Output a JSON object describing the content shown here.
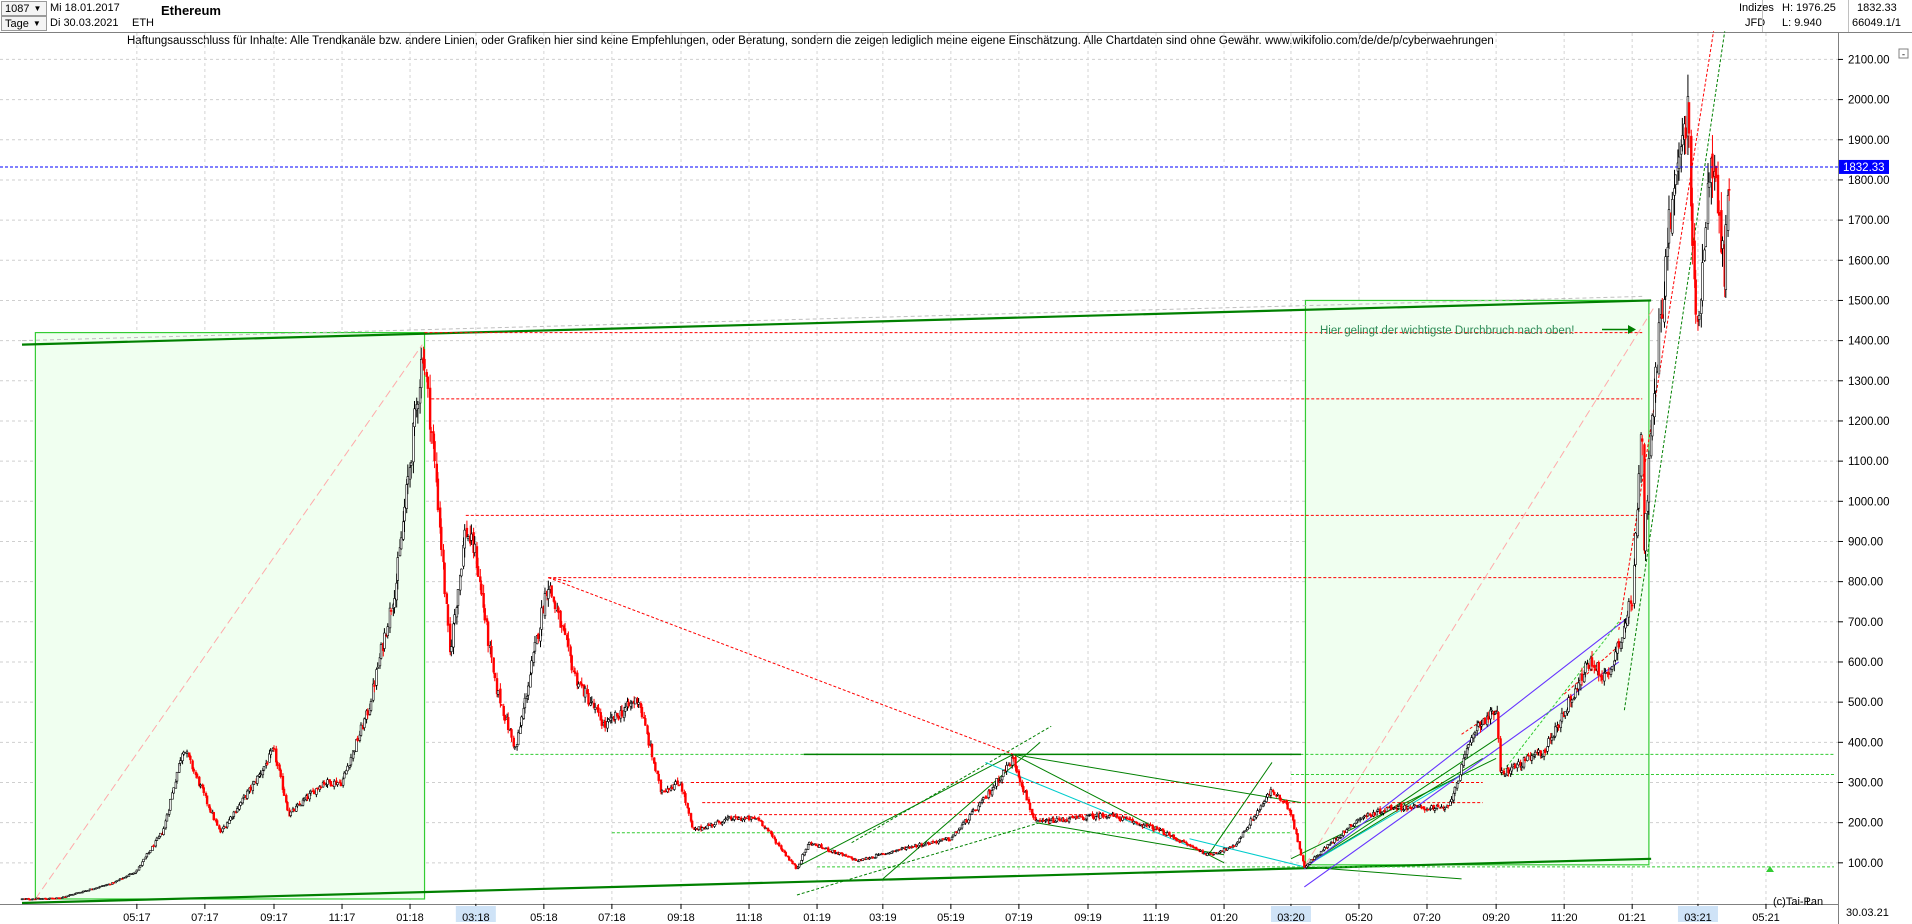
{
  "header": {
    "count_value": "1087",
    "from_date": "Mi 18.01.2017",
    "to_date": "Di 30.03.2021",
    "period_value": "Tage",
    "symbol": "ETH",
    "title": "Ethereum",
    "index_label": "Indizes",
    "exchange": "JFD",
    "high_label": "H: 1976.25",
    "low_label": "L: 9.940",
    "last_value": "1832.33",
    "volume_value": "66049.1/1"
  },
  "disclaimer": "Haftungsausschluss für Inhalte: Alle Trendkanäle bzw. andere Linien, oder Grafiken hier sind keine Empfehlungen, oder Beratung, sondern die zeigen lediglich meine eigene Einschätzung. Alle Chartdaten sind ohne Gewähr.  www.wikifolio.com/de/de/p/cyberwaehrungen",
  "annotation": "Hier gelingt der wichtigste Durchbruch nach oben!",
  "footer": {
    "copyright": "(c)Tai-Pan",
    "scale_mode": "L",
    "last_date": "30.03.21"
  },
  "colors": {
    "candle_up": "#000000",
    "candle_down": "#ff0000",
    "channel_green": "#008000",
    "box_fill": "#f0fff0",
    "box_border": "#33cc33",
    "price_line": "#0000ff",
    "resistance_red": "#ff0000",
    "purple_channel": "#6633ff"
  },
  "chart_data": {
    "type": "candlestick",
    "title": "Ethereum",
    "ylim": [
      0,
      2200
    ],
    "yticks": [
      100,
      200,
      300,
      400,
      500,
      600,
      700,
      800,
      900,
      1000,
      1100,
      1200,
      1300,
      1400,
      1500,
      1600,
      1700,
      1800,
      1900,
      2000,
      2100
    ],
    "ytick_labels": [
      "100.00",
      "200.00",
      "300.00",
      "400.00",
      "500.00",
      "600.00",
      "700.00",
      "800.00",
      "900.00",
      "1000.00",
      "1100.00",
      "1200.00",
      "1300.00",
      "1400.00",
      "1500.00",
      "1600.00",
      "1700.00",
      "1800.00",
      "1900.00",
      "2000.00",
      "2100.00"
    ],
    "x_range": [
      "2017-01-18",
      "2021-07-01"
    ],
    "xticks": [
      {
        "date": "2017-05-01",
        "label": "05:17"
      },
      {
        "date": "2017-07-01",
        "label": "07:17"
      },
      {
        "date": "2017-09-01",
        "label": "09:17"
      },
      {
        "date": "2017-11-01",
        "label": "11:17"
      },
      {
        "date": "2018-01-01",
        "label": "01:18"
      },
      {
        "date": "2018-03-01",
        "label": "03:18"
      },
      {
        "date": "2018-05-01",
        "label": "05:18"
      },
      {
        "date": "2018-07-01",
        "label": "07:18"
      },
      {
        "date": "2018-09-01",
        "label": "09:18"
      },
      {
        "date": "2018-11-01",
        "label": "11:18"
      },
      {
        "date": "2019-01-01",
        "label": "01:19"
      },
      {
        "date": "2019-03-01",
        "label": "03:19"
      },
      {
        "date": "2019-05-01",
        "label": "05:19"
      },
      {
        "date": "2019-07-01",
        "label": "07:19"
      },
      {
        "date": "2019-09-01",
        "label": "09:19"
      },
      {
        "date": "2019-11-01",
        "label": "11:19"
      },
      {
        "date": "2020-01-01",
        "label": "01:20"
      },
      {
        "date": "2020-03-01",
        "label": "03:20"
      },
      {
        "date": "2020-05-01",
        "label": "05:20"
      },
      {
        "date": "2020-07-01",
        "label": "07:20"
      },
      {
        "date": "2020-09-01",
        "label": "09:20"
      },
      {
        "date": "2020-11-01",
        "label": "11:20"
      },
      {
        "date": "2021-01-01",
        "label": "01:21"
      },
      {
        "date": "2021-03-01",
        "label": "03:21"
      },
      {
        "date": "2021-05-01",
        "label": "05:21"
      }
    ],
    "last_price": 1832.33,
    "last_price_label": "1832.33",
    "price_path": [
      [
        "2017-01-18",
        10
      ],
      [
        "2017-02-20",
        12
      ],
      [
        "2017-03-15",
        30
      ],
      [
        "2017-04-10",
        50
      ],
      [
        "2017-05-01",
        80
      ],
      [
        "2017-05-25",
        180
      ],
      [
        "2017-06-12",
        390
      ],
      [
        "2017-07-15",
        175
      ],
      [
        "2017-08-15",
        300
      ],
      [
        "2017-09-01",
        380
      ],
      [
        "2017-09-15",
        220
      ],
      [
        "2017-10-15",
        300
      ],
      [
        "2017-11-01",
        300
      ],
      [
        "2017-11-25",
        480
      ],
      [
        "2017-12-20",
        800
      ],
      [
        "2018-01-13",
        1380
      ],
      [
        "2018-01-25",
        1050
      ],
      [
        "2018-02-06",
        620
      ],
      [
        "2018-02-20",
        930
      ],
      [
        "2018-03-01",
        870
      ],
      [
        "2018-03-18",
        550
      ],
      [
        "2018-04-06",
        380
      ],
      [
        "2018-05-05",
        800
      ],
      [
        "2018-05-30",
        560
      ],
      [
        "2018-06-25",
        440
      ],
      [
        "2018-07-25",
        510
      ],
      [
        "2018-08-14",
        280
      ],
      [
        "2018-09-01",
        300
      ],
      [
        "2018-09-12",
        180
      ],
      [
        "2018-10-15",
        210
      ],
      [
        "2018-11-10",
        210
      ],
      [
        "2018-12-14",
        85
      ],
      [
        "2018-12-25",
        150
      ],
      [
        "2019-02-07",
        105
      ],
      [
        "2019-03-25",
        140
      ],
      [
        "2019-05-01",
        160
      ],
      [
        "2019-06-01",
        260
      ],
      [
        "2019-06-26",
        360
      ],
      [
        "2019-07-16",
        200
      ],
      [
        "2019-09-20",
        220
      ],
      [
        "2019-11-01",
        185
      ],
      [
        "2019-12-18",
        120
      ],
      [
        "2020-01-10",
        140
      ],
      [
        "2020-02-13",
        280
      ],
      [
        "2020-03-01",
        230
      ],
      [
        "2020-03-13",
        90
      ],
      [
        "2020-05-01",
        210
      ],
      [
        "2020-06-01",
        240
      ],
      [
        "2020-07-20",
        235
      ],
      [
        "2020-08-14",
        440
      ],
      [
        "2020-09-02",
        480
      ],
      [
        "2020-09-05",
        320
      ],
      [
        "2020-10-15",
        380
      ],
      [
        "2020-11-24",
        600
      ],
      [
        "2020-12-10",
        560
      ],
      [
        "2021-01-02",
        760
      ],
      [
        "2021-01-10",
        1250
      ],
      [
        "2021-01-12",
        900
      ],
      [
        "2021-01-22",
        1300
      ],
      [
        "2021-02-04",
        1700
      ],
      [
        "2021-02-20",
        1976
      ],
      [
        "2021-02-28",
        1400
      ],
      [
        "2021-03-13",
        1880
      ],
      [
        "2021-03-25",
        1580
      ],
      [
        "2021-03-30",
        1832
      ]
    ]
  }
}
